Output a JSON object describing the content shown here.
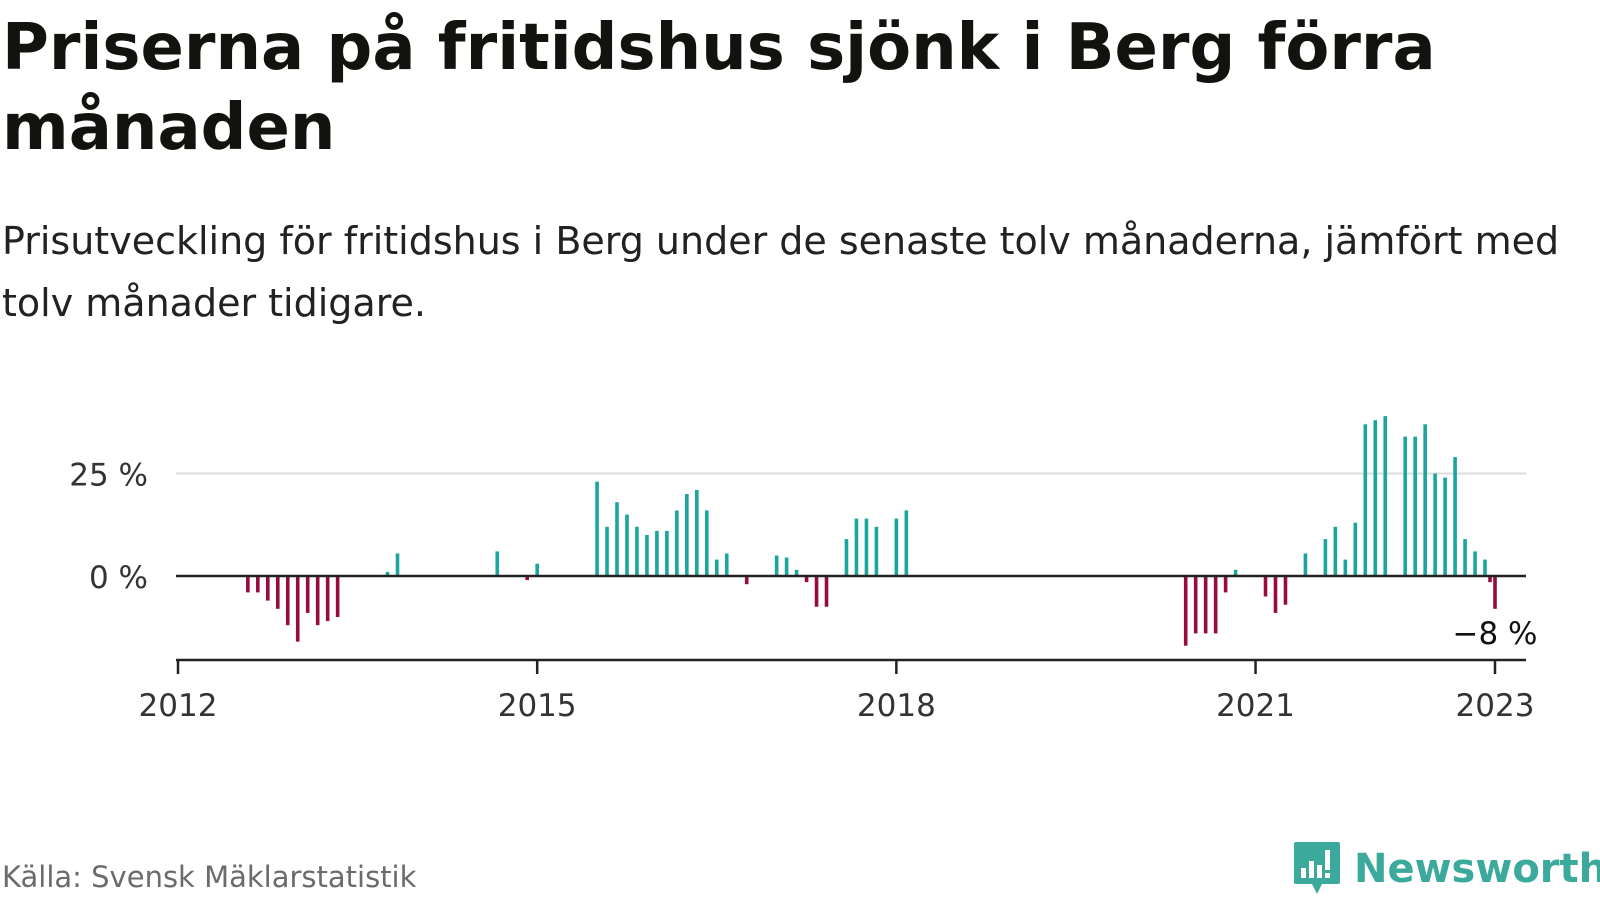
{
  "header": {
    "title": "Priserna på fritidshus sjönk i Berg förra månaden",
    "subtitle": "Prisutveckling för fritidshus i Berg under de senaste tolv månaderna, jämfört med tolv månader tidigare."
  },
  "footer": {
    "source": "Källa: Svensk Mäklarstatistik",
    "brand": "Newsworthy",
    "brand_icon": "bar-chart-speech-bubble-icon"
  },
  "colors": {
    "positive": "#1aa59d",
    "negative": "#970b3e",
    "brand": "#3ba99c",
    "grid": "#dddddd",
    "axis": "#222222"
  },
  "chart_data": {
    "type": "bar",
    "x_unit": "month",
    "xlim": [
      "2012-01",
      "2023-07"
    ],
    "ylim": [
      -20,
      40
    ],
    "y_ticks": [
      {
        "value": 0,
        "label": "0 %"
      },
      {
        "value": 25,
        "label": "25 %"
      }
    ],
    "x_ticks": [
      {
        "date": "2012-01",
        "label": "2012"
      },
      {
        "date": "2015-01",
        "label": "2015"
      },
      {
        "date": "2018-01",
        "label": "2018"
      },
      {
        "date": "2021-01",
        "label": "2021"
      },
      {
        "date": "2023-01",
        "label": "2023"
      }
    ],
    "grid": true,
    "legend": "none",
    "annotation": {
      "date": "2023-01",
      "label": "−8 %"
    },
    "data": [
      {
        "date": "2012-08",
        "value": -4
      },
      {
        "date": "2012-09",
        "value": -4
      },
      {
        "date": "2012-10",
        "value": -6
      },
      {
        "date": "2012-11",
        "value": -8
      },
      {
        "date": "2012-12",
        "value": -12
      },
      {
        "date": "2013-01",
        "value": -16
      },
      {
        "date": "2013-02",
        "value": -9
      },
      {
        "date": "2013-03",
        "value": -12
      },
      {
        "date": "2013-04",
        "value": -11
      },
      {
        "date": "2013-05",
        "value": -10
      },
      {
        "date": "2013-07",
        "value": 0
      },
      {
        "date": "2013-10",
        "value": 1
      },
      {
        "date": "2013-11",
        "value": 5.5
      },
      {
        "date": "2014-09",
        "value": 6
      },
      {
        "date": "2014-12",
        "value": -1
      },
      {
        "date": "2015-01",
        "value": 3
      },
      {
        "date": "2015-07",
        "value": 23
      },
      {
        "date": "2015-08",
        "value": 12
      },
      {
        "date": "2015-09",
        "value": 18
      },
      {
        "date": "2015-10",
        "value": 15
      },
      {
        "date": "2015-11",
        "value": 12
      },
      {
        "date": "2015-12",
        "value": 10
      },
      {
        "date": "2016-01",
        "value": 11
      },
      {
        "date": "2016-02",
        "value": 11
      },
      {
        "date": "2016-03",
        "value": 16
      },
      {
        "date": "2016-04",
        "value": 20
      },
      {
        "date": "2016-05",
        "value": 21
      },
      {
        "date": "2016-06",
        "value": 16
      },
      {
        "date": "2016-07",
        "value": 4
      },
      {
        "date": "2016-08",
        "value": 5.5
      },
      {
        "date": "2016-10",
        "value": -2
      },
      {
        "date": "2017-01",
        "value": 5
      },
      {
        "date": "2017-02",
        "value": 4.5
      },
      {
        "date": "2017-03",
        "value": 1.5
      },
      {
        "date": "2017-04",
        "value": -1.5
      },
      {
        "date": "2017-05",
        "value": -7.5
      },
      {
        "date": "2017-06",
        "value": -7.5
      },
      {
        "date": "2017-08",
        "value": 9
      },
      {
        "date": "2017-09",
        "value": 14
      },
      {
        "date": "2017-10",
        "value": 14
      },
      {
        "date": "2017-11",
        "value": 12
      },
      {
        "date": "2018-01",
        "value": 14
      },
      {
        "date": "2018-02",
        "value": 16
      },
      {
        "date": "2020-06",
        "value": -17
      },
      {
        "date": "2020-07",
        "value": -14
      },
      {
        "date": "2020-08",
        "value": -14
      },
      {
        "date": "2020-09",
        "value": -14
      },
      {
        "date": "2020-10",
        "value": -4
      },
      {
        "date": "2020-11",
        "value": 1.5
      },
      {
        "date": "2020-12",
        "value": 0
      },
      {
        "date": "2021-02",
        "value": -5
      },
      {
        "date": "2021-03",
        "value": -9
      },
      {
        "date": "2021-04",
        "value": -7
      },
      {
        "date": "2021-06",
        "value": 5.5
      },
      {
        "date": "2021-08",
        "value": 9
      },
      {
        "date": "2021-09",
        "value": 12
      },
      {
        "date": "2021-10",
        "value": 4
      },
      {
        "date": "2021-11",
        "value": 13
      },
      {
        "date": "2021-12",
        "value": 37
      },
      {
        "date": "2022-01",
        "value": 38
      },
      {
        "date": "2022-02",
        "value": 39
      },
      {
        "date": "2022-04",
        "value": 34
      },
      {
        "date": "2022-05",
        "value": 34
      },
      {
        "date": "2022-06",
        "value": 37
      },
      {
        "date": "2022-07",
        "value": 25
      },
      {
        "date": "2022-08",
        "value": 24
      },
      {
        "date": "2022-09",
        "value": 29
      },
      {
        "date": "2022-10",
        "value": 9
      },
      {
        "date": "2022-11",
        "value": 6
      },
      {
        "date": "2022-12",
        "value": 4
      },
      {
        "date": "2022-12",
        "value": -1.5
      },
      {
        "date": "2023-01",
        "value": -8
      }
    ]
  }
}
